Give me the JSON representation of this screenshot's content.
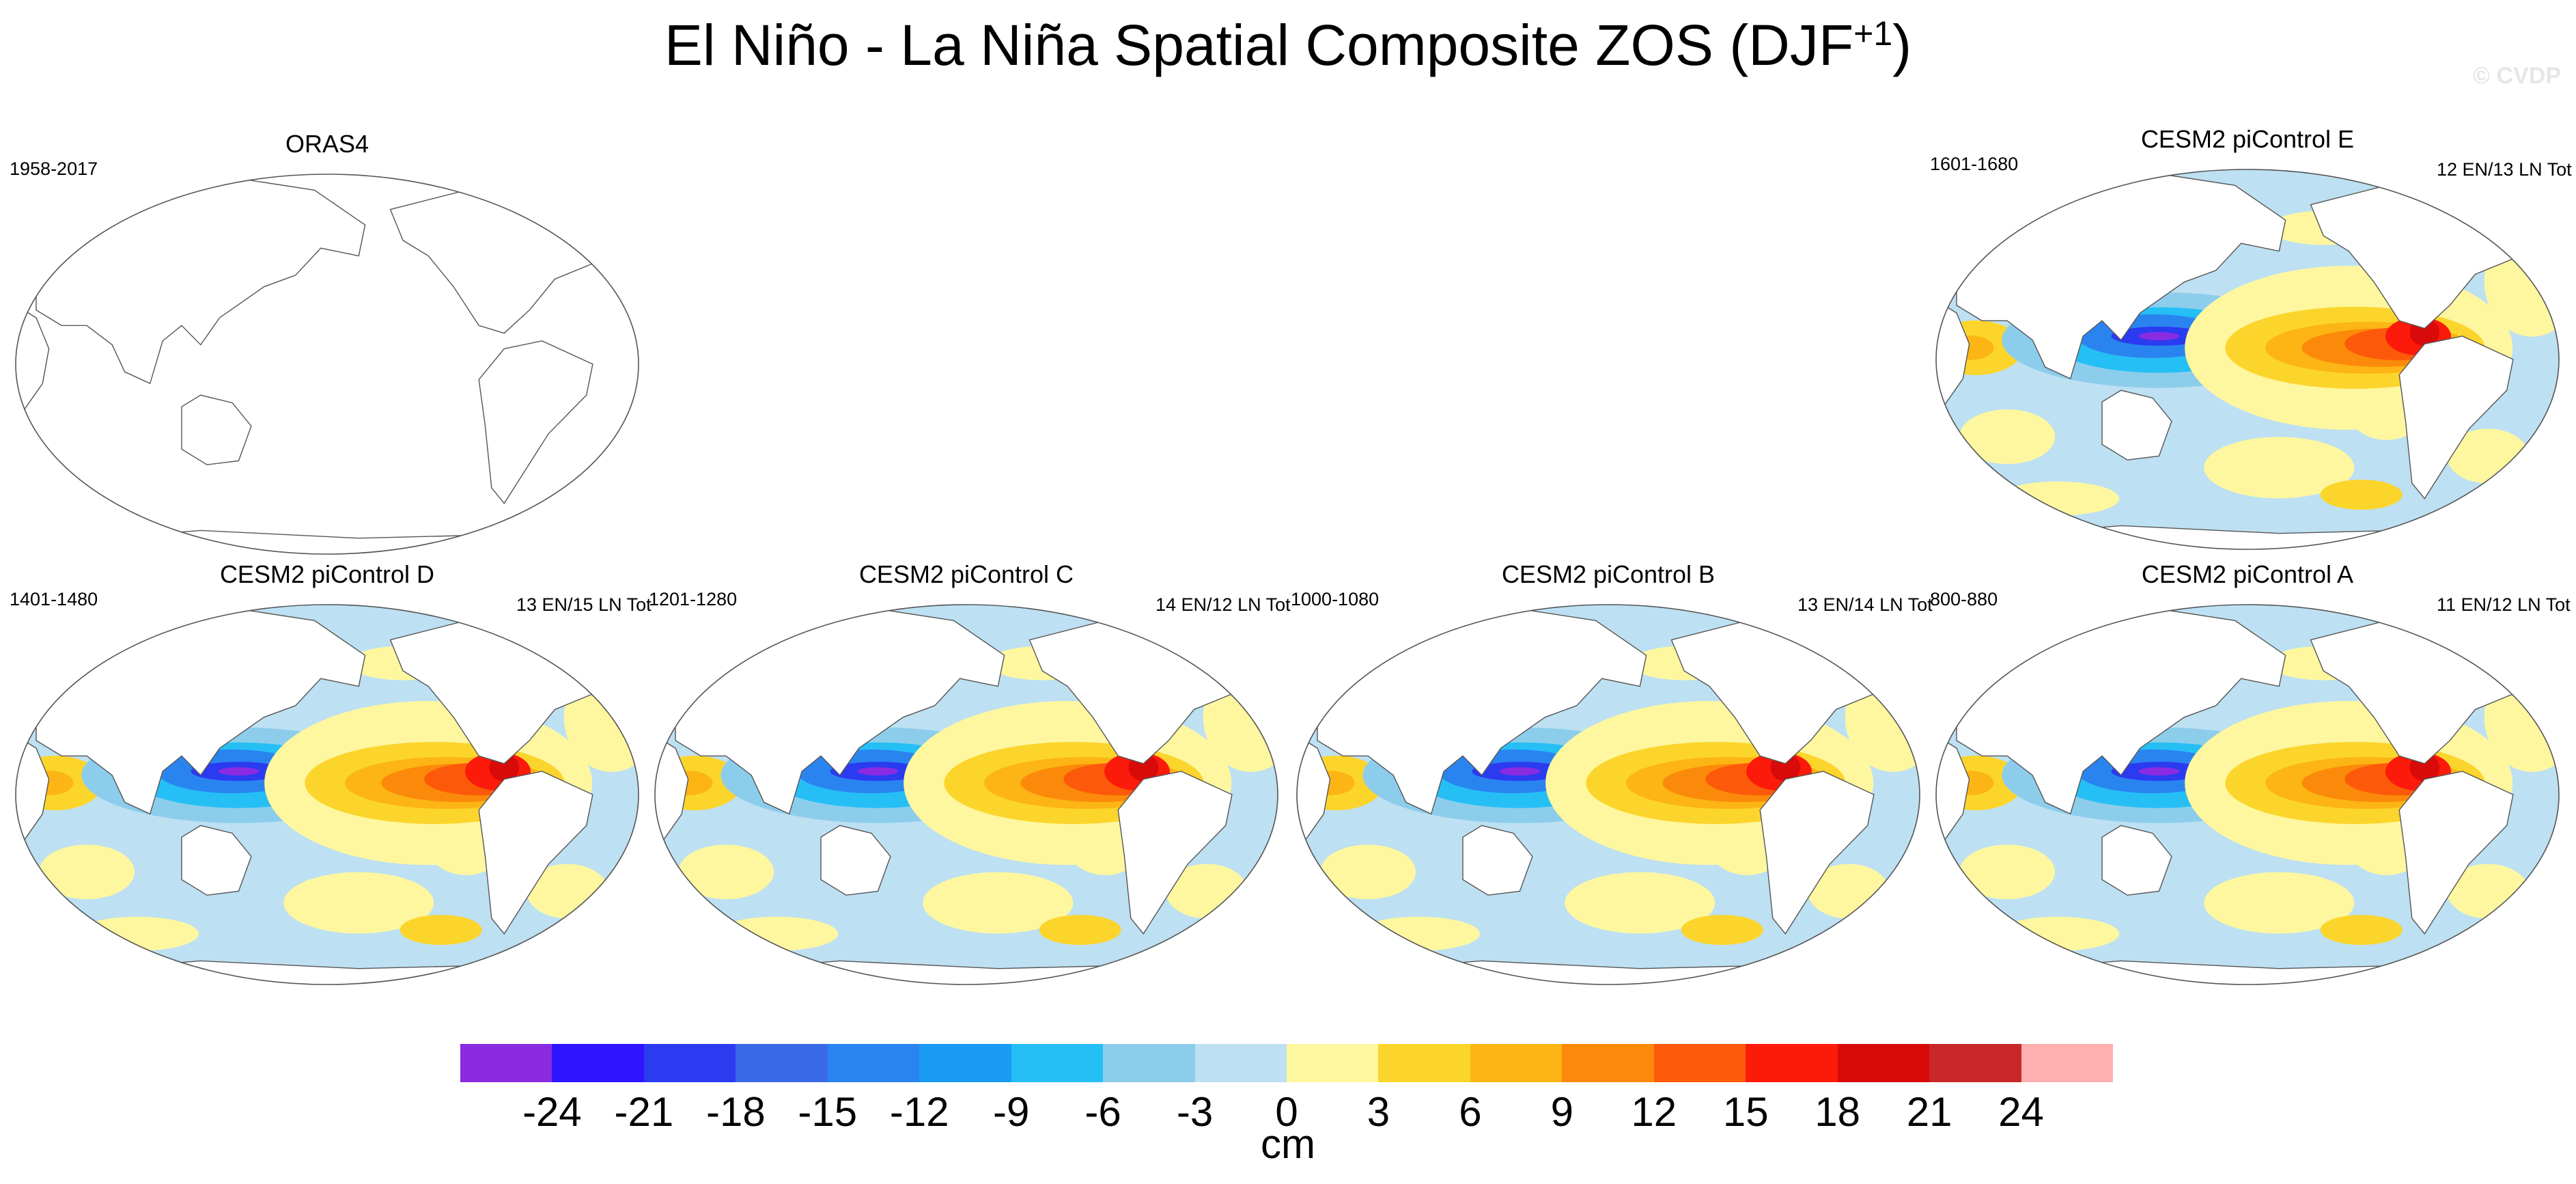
{
  "title": {
    "text": "El Niño - La Niña Spatial Composite ZOS (DJF",
    "superscript": "+1",
    "close": ")"
  },
  "credit": "© CVDP",
  "panels": [
    {
      "id": "oras4",
      "title": "ORAS4",
      "years": "1958-2017",
      "count": "",
      "filled": false
    },
    {
      "id": "e",
      "title": "CESM2 piControl E",
      "years": "1601-1680",
      "count": "12 EN/13 LN Tot",
      "filled": true
    },
    {
      "id": "d",
      "title": "CESM2 piControl D",
      "years": "1401-1480",
      "count": "13 EN/15 LN Tot",
      "filled": true
    },
    {
      "id": "c",
      "title": "CESM2 piControl C",
      "years": "1201-1280",
      "count": "14 EN/12 LN Tot",
      "filled": true
    },
    {
      "id": "b",
      "title": "CESM2 piControl B",
      "years": "1000-1080",
      "count": "13 EN/14 LN Tot",
      "filled": true
    },
    {
      "id": "a",
      "title": "CESM2 piControl A",
      "years": "800-880",
      "count": "11 EN/12 LN Tot",
      "filled": true
    }
  ],
  "colorbar": {
    "units": "cm",
    "ticks": [
      "-24",
      "-21",
      "-18",
      "-15",
      "-12",
      "-9",
      "-6",
      "-3",
      "0",
      "3",
      "6",
      "9",
      "12",
      "15",
      "18",
      "21",
      "24"
    ],
    "colors": [
      "#8a2be2",
      "#2e14ff",
      "#2a3bf0",
      "#3a6ae8",
      "#2a84f0",
      "#1a9cf4",
      "#25bff5",
      "#8dcdec",
      "#bde0f2",
      "#fef7a0",
      "#fcd52c",
      "#fcb514",
      "#fc8a0a",
      "#fc5a0a",
      "#fc1a0a",
      "#d80a0a",
      "#c82828",
      "#feb0b0"
    ]
  }
}
